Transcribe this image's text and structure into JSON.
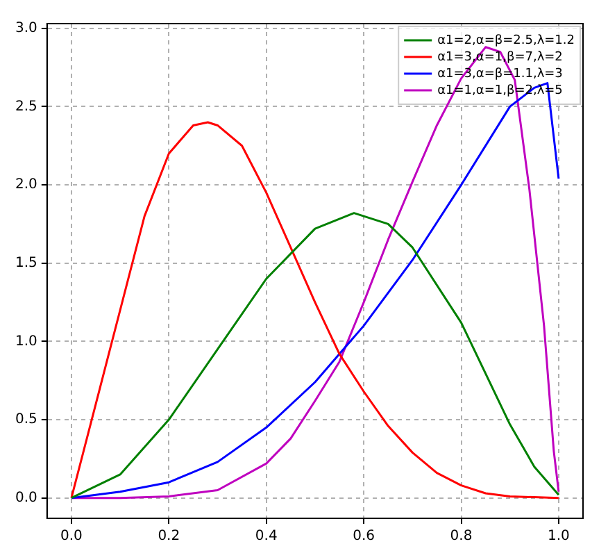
{
  "chart_data": {
    "type": "line",
    "xlim": [
      -0.05,
      1.05
    ],
    "ylim": [
      -0.13,
      3.03
    ],
    "xticks": [
      {
        "value": 0,
        "label": "0.0"
      },
      {
        "value": 0.2,
        "label": "0.2"
      },
      {
        "value": 0.4,
        "label": "0.4"
      },
      {
        "value": 0.6,
        "label": "0.6"
      },
      {
        "value": 0.8,
        "label": "0.8"
      },
      {
        "value": 1,
        "label": "1.0"
      }
    ],
    "yticks": [
      {
        "value": 0,
        "label": "0.0"
      },
      {
        "value": 0.5,
        "label": "0.5"
      },
      {
        "value": 1,
        "label": "1.0"
      },
      {
        "value": 1.5,
        "label": "1.5"
      },
      {
        "value": 2,
        "label": "2.0"
      },
      {
        "value": 2.5,
        "label": "2.5"
      },
      {
        "value": 3,
        "label": "3.0"
      }
    ],
    "grid": true,
    "legend": "top right",
    "marker": "none",
    "line_style": "solid",
    "series": [
      {
        "name": "α1=2,α=β=2.5,λ=1.2",
        "color": "#008000",
        "x": [
          0,
          0.1,
          0.2,
          0.3,
          0.4,
          0.5,
          0.58,
          0.65,
          0.7,
          0.8,
          0.9,
          0.95,
          1
        ],
        "values": [
          0,
          0.15,
          0.5,
          0.95,
          1.4,
          1.72,
          1.82,
          1.75,
          1.6,
          1.12,
          0.47,
          0.2,
          0.02
        ]
      },
      {
        "name": "α1=3,α=1,β=7,λ=2",
        "color": "#ff0000",
        "x": [
          0,
          0.05,
          0.1,
          0.15,
          0.2,
          0.25,
          0.28,
          0.3,
          0.35,
          0.4,
          0.45,
          0.5,
          0.55,
          0.6,
          0.65,
          0.7,
          0.75,
          0.8,
          0.85,
          0.9,
          1
        ],
        "values": [
          0,
          0.6,
          1.2,
          1.8,
          2.2,
          2.38,
          2.4,
          2.38,
          2.25,
          1.95,
          1.6,
          1.25,
          0.92,
          0.68,
          0.46,
          0.29,
          0.16,
          0.08,
          0.03,
          0.01,
          0
        ]
      },
      {
        "name": "α1=3,α=β=1.1,λ=3",
        "color": "#0000ff",
        "x": [
          0,
          0.1,
          0.2,
          0.3,
          0.4,
          0.5,
          0.6,
          0.7,
          0.8,
          0.9,
          0.95,
          0.977,
          1
        ],
        "values": [
          0,
          0.04,
          0.1,
          0.23,
          0.45,
          0.74,
          1.1,
          1.52,
          2,
          2.5,
          2.62,
          2.65,
          2.04
        ]
      },
      {
        "name": "α1=1,α=1,β=2,λ=5",
        "color": "#bf00bf",
        "x": [
          0,
          0.1,
          0.2,
          0.3,
          0.4,
          0.45,
          0.5,
          0.55,
          0.6,
          0.65,
          0.7,
          0.75,
          0.8,
          0.85,
          0.88,
          0.91,
          0.94,
          0.97,
          0.99,
          1
        ],
        "values": [
          0,
          0,
          0.01,
          0.05,
          0.22,
          0.38,
          0.62,
          0.87,
          1.25,
          1.65,
          2.02,
          2.38,
          2.68,
          2.88,
          2.85,
          2.67,
          1.97,
          1.1,
          0.3,
          0.04
        ]
      }
    ]
  }
}
